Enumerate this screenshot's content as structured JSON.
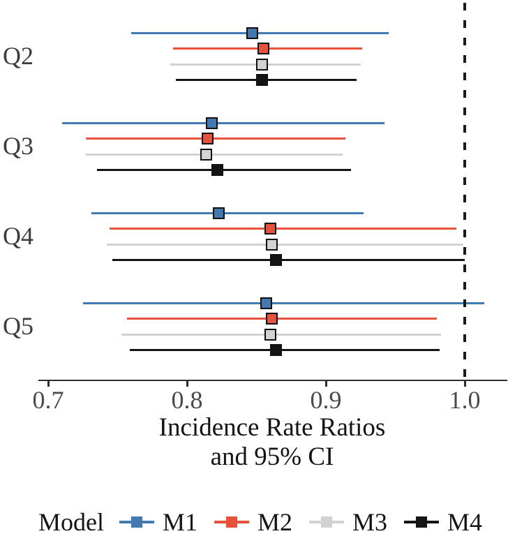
{
  "chart_data": {
    "type": "scatter",
    "subtype": "forest-plot-with-95ci",
    "xlabel_line1": "Incidence Rate Ratios",
    "xlabel_line2": "and 95% CI",
    "x_ticks": [
      "0.7",
      "0.8",
      "0.9",
      "1.0"
    ],
    "x_tick_values": [
      0.7,
      0.8,
      0.9,
      1.0
    ],
    "xlim": [
      0.665,
      1.035
    ],
    "reference_line": 1.0,
    "grid": "off",
    "legend_position": "bottom",
    "groups": [
      "Q2",
      "Q3",
      "Q4",
      "Q5"
    ],
    "series": [
      {
        "name": "M1",
        "color": "#4379B1",
        "est": [
          0.847,
          0.818,
          0.823,
          0.857
        ],
        "lo": [
          0.76,
          0.71,
          0.731,
          0.725
        ],
        "hi": [
          0.945,
          0.942,
          0.927,
          1.014
        ]
      },
      {
        "name": "M2",
        "color": "#E8513B",
        "est": [
          0.855,
          0.815,
          0.86,
          0.861
        ],
        "lo": [
          0.79,
          0.727,
          0.744,
          0.757
        ],
        "hi": [
          0.926,
          0.914,
          0.994,
          0.98
        ]
      },
      {
        "name": "M3",
        "color": "#D2D2D2",
        "est": [
          0.854,
          0.814,
          0.861,
          0.86
        ],
        "lo": [
          0.788,
          0.727,
          0.742,
          0.753
        ],
        "hi": [
          0.925,
          0.912,
          0.999,
          0.983
        ]
      },
      {
        "name": "M4",
        "color": "#151515",
        "est": [
          0.854,
          0.822,
          0.864,
          0.864
        ],
        "lo": [
          0.792,
          0.735,
          0.746,
          0.759
        ],
        "hi": [
          0.922,
          0.918,
          1.0,
          0.982
        ]
      }
    ]
  },
  "legend": {
    "title": "Model",
    "items": [
      {
        "label": "M1",
        "color": "#4379B1"
      },
      {
        "label": "M2",
        "color": "#E8513B"
      },
      {
        "label": "M3",
        "color": "#D2D2D2"
      },
      {
        "label": "M4",
        "color": "#151515"
      }
    ]
  },
  "colors": {
    "background": "#ffffff",
    "axis": "#2e2e2e",
    "tick_text": "#4a4a4a",
    "group_text": "#3c3c3c",
    "reference_line": "#1a1a1a",
    "marker_border": "#111111"
  }
}
